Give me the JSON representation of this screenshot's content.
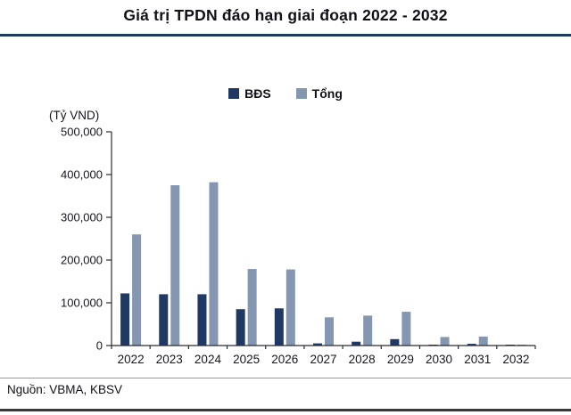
{
  "title": "Giá trị TPDN đáo hạn giai đoạn 2022 - 2032",
  "source": "Nguồn: VBMA, KBSV",
  "colors": {
    "accent": "#1F3864",
    "rule": "#1F3864",
    "bds": "#1F3864",
    "tong": "#8496B0"
  },
  "chart_data": {
    "type": "bar",
    "title": "Giá trị TPDN đáo hạn giai đoạn 2022 - 2032",
    "xlabel": "",
    "ylabel": "(Tỷ VND)",
    "ylim": [
      0,
      500000
    ],
    "ytick_step": 100000,
    "ytick_labels": [
      "0",
      "100,000",
      "200,000",
      "300,000",
      "400,000",
      "500,000"
    ],
    "grid": false,
    "legend_position": "top",
    "categories": [
      "2022",
      "2023",
      "2024",
      "2025",
      "2026",
      "2027",
      "2028",
      "2029",
      "2030",
      "2031",
      "2032"
    ],
    "series": [
      {
        "name": "BĐS",
        "color": "#1F3864",
        "values": [
          122000,
          120000,
          120000,
          85000,
          87000,
          5000,
          9000,
          15000,
          2000,
          4000,
          1000
        ]
      },
      {
        "name": "Tổng",
        "color": "#8496B0",
        "values": [
          260000,
          375000,
          382000,
          179000,
          178000,
          66000,
          70000,
          79000,
          20000,
          21000,
          2000
        ]
      }
    ]
  }
}
